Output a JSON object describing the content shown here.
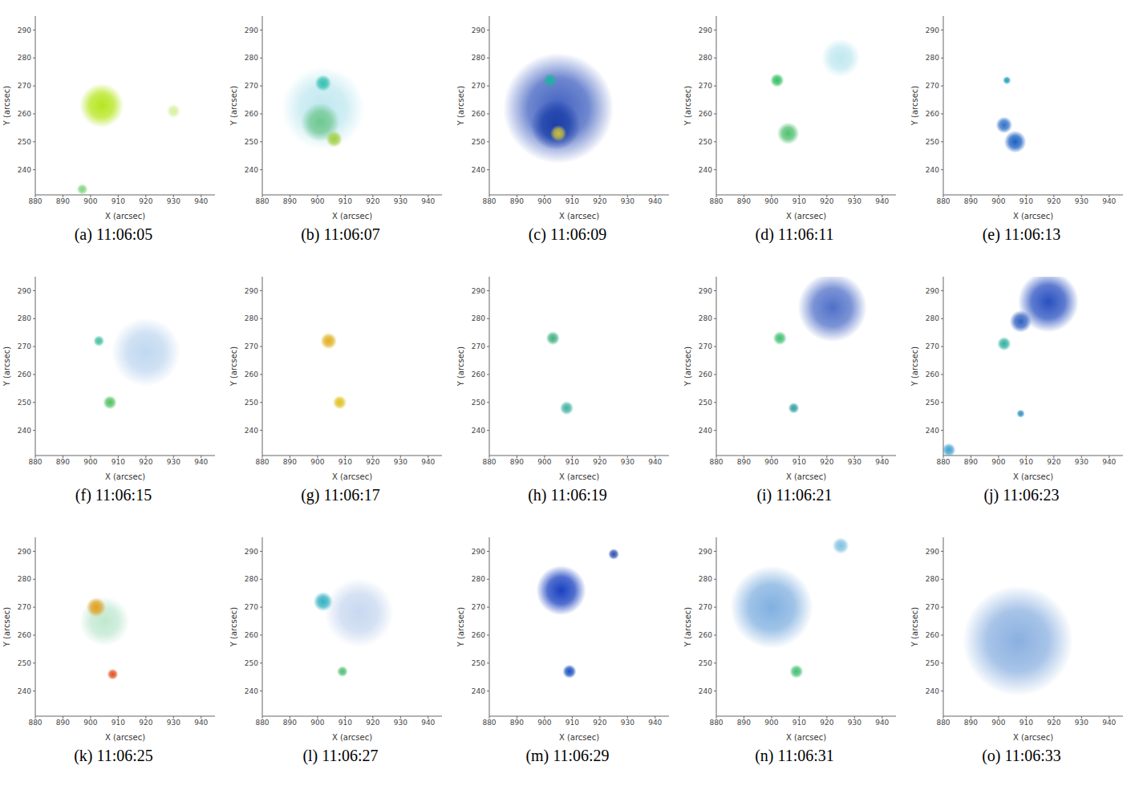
{
  "chart_data": [
    {
      "type": "scatter",
      "title": "(a) 11:06:05",
      "x_label": "X (arcsec)",
      "y_label": "Y (arcsec)",
      "xlim": [
        880,
        945
      ],
      "ylim": [
        231,
        295
      ],
      "xticks": [
        880,
        890,
        900,
        910,
        920,
        930,
        940
      ],
      "yticks": [
        240,
        250,
        260,
        270,
        280,
        290
      ],
      "x": [
        904,
        897,
        930
      ],
      "y": [
        263,
        233,
        261
      ],
      "diameter": [
        16,
        4,
        5
      ],
      "colors": [
        "#b5e61d",
        "#7fd67f",
        "#d8f0a0"
      ]
    },
    {
      "type": "scatter",
      "title": "(b) 11:06:07",
      "x_label": "X (arcsec)",
      "y_label": "Y (arcsec)",
      "xlim": [
        880,
        945
      ],
      "ylim": [
        231,
        295
      ],
      "xticks": [
        880,
        890,
        900,
        910,
        920,
        930,
        940
      ],
      "yticks": [
        240,
        250,
        260,
        270,
        280,
        290
      ],
      "x": [
        902,
        901,
        902,
        906
      ],
      "y": [
        262,
        257,
        271,
        251
      ],
      "diameter": [
        30,
        14,
        6,
        6
      ],
      "colors": [
        "#c0e8f0",
        "#70c890",
        "#33c0b0",
        "#a0d040"
      ]
    },
    {
      "type": "scatter",
      "title": "(c) 11:06:09",
      "x_label": "X (arcsec)",
      "y_label": "Y (arcsec)",
      "xlim": [
        880,
        945
      ],
      "ylim": [
        231,
        295
      ],
      "xticks": [
        880,
        890,
        900,
        910,
        920,
        930,
        940
      ],
      "yticks": [
        240,
        250,
        260,
        270,
        280,
        290
      ],
      "x": [
        905,
        904,
        905,
        902
      ],
      "y": [
        262,
        256,
        253,
        272
      ],
      "diameter": [
        40,
        18,
        6,
        5
      ],
      "colors": [
        "#4060c0",
        "#1c3fa8",
        "#c8c040",
        "#22b0a0"
      ]
    },
    {
      "type": "scatter",
      "title": "(d) 11:06:11",
      "x_label": "X (arcsec)",
      "y_label": "Y (arcsec)",
      "xlim": [
        880,
        945
      ],
      "ylim": [
        231,
        295
      ],
      "xticks": [
        880,
        890,
        900,
        910,
        920,
        930,
        940
      ],
      "yticks": [
        240,
        250,
        260,
        270,
        280,
        290
      ],
      "x": [
        925,
        902,
        906
      ],
      "y": [
        280,
        272,
        253
      ],
      "diameter": [
        14,
        5,
        8
      ],
      "colors": [
        "#c0e8f0",
        "#30c060",
        "#50c070"
      ]
    },
    {
      "type": "scatter",
      "title": "(e) 11:06:13",
      "x_label": "X (arcsec)",
      "y_label": "Y (arcsec)",
      "xlim": [
        880,
        945
      ],
      "ylim": [
        231,
        295
      ],
      "xticks": [
        880,
        890,
        900,
        910,
        920,
        930,
        940
      ],
      "yticks": [
        240,
        250,
        260,
        270,
        280,
        290
      ],
      "x": [
        902,
        906,
        903
      ],
      "y": [
        256,
        250,
        272
      ],
      "diameter": [
        6,
        8,
        3
      ],
      "colors": [
        "#3070c8",
        "#1a60c0",
        "#20a0c0"
      ]
    },
    {
      "type": "scatter",
      "title": "(f) 11:06:15",
      "x_label": "X (arcsec)",
      "y_label": "Y (arcsec)",
      "xlim": [
        880,
        945
      ],
      "ylim": [
        231,
        295
      ],
      "xticks": [
        880,
        890,
        900,
        910,
        920,
        930,
        940
      ],
      "yticks": [
        240,
        250,
        260,
        270,
        280,
        290
      ],
      "x": [
        920,
        903,
        907
      ],
      "y": [
        268,
        272,
        250
      ],
      "diameter": [
        25,
        4,
        5
      ],
      "colors": [
        "#c0d8f0",
        "#40c0a0",
        "#50c060"
      ]
    },
    {
      "type": "scatter",
      "title": "(g) 11:06:17",
      "x_label": "X (arcsec)",
      "y_label": "Y (arcsec)",
      "xlim": [
        880,
        945
      ],
      "ylim": [
        231,
        295
      ],
      "xticks": [
        880,
        890,
        900,
        910,
        920,
        930,
        940
      ],
      "yticks": [
        240,
        250,
        260,
        270,
        280,
        290
      ],
      "x": [
        904,
        908
      ],
      "y": [
        272,
        250
      ],
      "diameter": [
        6,
        5
      ],
      "colors": [
        "#e0b020",
        "#e0c020"
      ]
    },
    {
      "type": "scatter",
      "title": "(h) 11:06:19",
      "x_label": "X (arcsec)",
      "y_label": "Y (arcsec)",
      "xlim": [
        880,
        945
      ],
      "ylim": [
        231,
        295
      ],
      "xticks": [
        880,
        890,
        900,
        910,
        920,
        930,
        940
      ],
      "yticks": [
        240,
        250,
        260,
        270,
        280,
        290
      ],
      "x": [
        903,
        908
      ],
      "y": [
        273,
        248
      ],
      "diameter": [
        5,
        5
      ],
      "colors": [
        "#40b080",
        "#40b0a0"
      ]
    },
    {
      "type": "scatter",
      "title": "(i) 11:06:21",
      "x_label": "X (arcsec)",
      "y_label": "Y (arcsec)",
      "xlim": [
        880,
        945
      ],
      "ylim": [
        231,
        295
      ],
      "xticks": [
        880,
        890,
        900,
        910,
        920,
        930,
        940
      ],
      "yticks": [
        240,
        250,
        260,
        270,
        280,
        290
      ],
      "x": [
        922,
        903,
        908
      ],
      "y": [
        284,
        273,
        248
      ],
      "diameter": [
        25,
        5,
        4
      ],
      "colors": [
        "#5070c8",
        "#40c070",
        "#30a0a0"
      ]
    },
    {
      "type": "scatter",
      "title": "(j) 11:06:23",
      "x_label": "X (arcsec)",
      "y_label": "Y (arcsec)",
      "xlim": [
        880,
        945
      ],
      "ylim": [
        231,
        295
      ],
      "xticks": [
        880,
        890,
        900,
        910,
        920,
        930,
        940
      ],
      "yticks": [
        240,
        250,
        260,
        270,
        280,
        290
      ],
      "x": [
        918,
        908,
        882,
        902,
        908
      ],
      "y": [
        286,
        279,
        233,
        271,
        246
      ],
      "diameter": [
        22,
        8,
        5,
        5,
        3
      ],
      "colors": [
        "#2850c0",
        "#3060c0",
        "#40a0d0",
        "#30b0a0",
        "#3090c0"
      ]
    },
    {
      "type": "scatter",
      "title": "(k) 11:06:25",
      "x_label": "X (arcsec)",
      "y_label": "Y (arcsec)",
      "xlim": [
        880,
        945
      ],
      "ylim": [
        231,
        295
      ],
      "xticks": [
        880,
        890,
        900,
        910,
        920,
        930,
        940
      ],
      "yticks": [
        240,
        250,
        260,
        270,
        280,
        290
      ],
      "x": [
        905,
        902,
        908
      ],
      "y": [
        265,
        270,
        246
      ],
      "diameter": [
        18,
        7,
        4
      ],
      "colors": [
        "#c0e8d0",
        "#e0a020",
        "#e05020"
      ]
    },
    {
      "type": "scatter",
      "title": "(l) 11:06:27",
      "x_label": "X (arcsec)",
      "y_label": "Y (arcsec)",
      "xlim": [
        880,
        945
      ],
      "ylim": [
        231,
        295
      ],
      "xticks": [
        880,
        890,
        900,
        910,
        920,
        930,
        940
      ],
      "yticks": [
        240,
        250,
        260,
        270,
        280,
        290
      ],
      "x": [
        915,
        902,
        909
      ],
      "y": [
        268,
        272,
        247
      ],
      "diameter": [
        25,
        7,
        4
      ],
      "colors": [
        "#c8d8f0",
        "#30b0c0",
        "#50c070"
      ]
    },
    {
      "type": "scatter",
      "title": "(m) 11:06:29",
      "x_label": "X (arcsec)",
      "y_label": "Y (arcsec)",
      "xlim": [
        880,
        945
      ],
      "ylim": [
        231,
        295
      ],
      "xticks": [
        880,
        890,
        900,
        910,
        920,
        930,
        940
      ],
      "yticks": [
        240,
        250,
        260,
        270,
        280,
        290
      ],
      "x": [
        906,
        909,
        925
      ],
      "y": [
        276,
        247,
        289
      ],
      "diameter": [
        18,
        5,
        4
      ],
      "colors": [
        "#1840c0",
        "#1850c0",
        "#3050b0"
      ]
    },
    {
      "type": "scatter",
      "title": "(n) 11:06:31",
      "x_label": "X (arcsec)",
      "y_label": "Y (arcsec)",
      "xlim": [
        880,
        945
      ],
      "ylim": [
        231,
        295
      ],
      "xticks": [
        880,
        890,
        900,
        910,
        920,
        930,
        940
      ],
      "yticks": [
        240,
        250,
        260,
        270,
        280,
        290
      ],
      "x": [
        900,
        925,
        909
      ],
      "y": [
        270,
        292,
        247
      ],
      "diameter": [
        30,
        6,
        5
      ],
      "colors": [
        "#80b0e0",
        "#80c0e0",
        "#40c070"
      ]
    },
    {
      "type": "scatter",
      "title": "(o) 11:06:33",
      "x_label": "X (arcsec)",
      "y_label": "Y (arcsec)",
      "xlim": [
        880,
        945
      ],
      "ylim": [
        231,
        295
      ],
      "xticks": [
        880,
        890,
        900,
        910,
        920,
        930,
        940
      ],
      "yticks": [
        240,
        250,
        260,
        270,
        280,
        290
      ],
      "x": [
        907
      ],
      "y": [
        258
      ],
      "diameter": [
        40
      ],
      "colors": [
        "#8ab0e0"
      ]
    }
  ]
}
